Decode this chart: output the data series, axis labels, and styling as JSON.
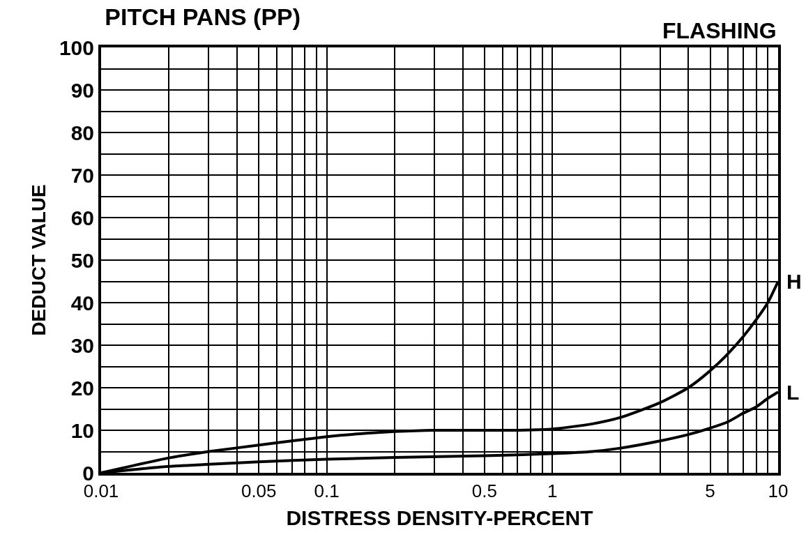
{
  "chart_data": {
    "type": "line",
    "title": "PITCH PANS (PP)",
    "subtitle": "FLASHING",
    "xlabel": "DISTRESS DENSITY-PERCENT",
    "ylabel": "DEDUCT VALUE",
    "log": "x",
    "grid": true,
    "legend": false,
    "marker": "none",
    "line_style": "solid",
    "xlim": [
      0.01,
      10
    ],
    "ylim": [
      0,
      100
    ],
    "xticks": [
      0.01,
      {
        "value": 0.02,
        "label": null
      },
      {
        "value": 0.03,
        "label": null
      },
      {
        "value": 0.04,
        "label": null
      },
      0.05,
      {
        "value": 0.06,
        "label": null
      },
      {
        "value": 0.07,
        "label": null
      },
      {
        "value": 0.08,
        "label": null
      },
      {
        "value": 0.09,
        "label": null
      },
      {
        "value": 0.1,
        "label": "0.1"
      },
      {
        "value": 0.2,
        "label": null
      },
      {
        "value": 0.3,
        "label": null
      },
      {
        "value": 0.4,
        "label": null
      },
      0.5,
      {
        "value": 0.6,
        "label": null
      },
      {
        "value": 0.7,
        "label": null
      },
      {
        "value": 0.8,
        "label": null
      },
      {
        "value": 0.9,
        "label": null
      },
      1,
      {
        "value": 2,
        "label": null
      },
      {
        "value": 3,
        "label": null
      },
      {
        "value": 4,
        "label": null
      },
      5,
      {
        "value": 6,
        "label": null
      },
      {
        "value": 7,
        "label": null
      },
      {
        "value": 8,
        "label": null
      },
      {
        "value": 9,
        "label": null
      },
      10
    ],
    "yticks": [
      0,
      {
        "value": 5,
        "label": null
      },
      10,
      {
        "value": 15,
        "label": null
      },
      20,
      {
        "value": 25,
        "label": null
      },
      30,
      {
        "value": 35,
        "label": null
      },
      40,
      {
        "value": 45,
        "label": null
      },
      50,
      {
        "value": 55,
        "label": null
      },
      60,
      {
        "value": 65,
        "label": null
      },
      70,
      {
        "value": 75,
        "label": null
      },
      80,
      {
        "value": 85,
        "label": null
      },
      90,
      {
        "value": 95,
        "label": null
      },
      100
    ],
    "series": [
      {
        "name": "H",
        "color": "#000000",
        "x": [
          0.01,
          0.02,
          0.03,
          0.05,
          0.07,
          0.1,
          0.15,
          0.2,
          0.3,
          0.5,
          0.7,
          1,
          1.5,
          2,
          3,
          4,
          5,
          6,
          7,
          8,
          9,
          10
        ],
        "values": [
          0,
          3.5,
          5,
          6.5,
          7.5,
          8.5,
          9.3,
          9.7,
          10,
          10,
          10,
          10.3,
          11.5,
          13,
          16.5,
          20,
          24,
          28,
          32,
          36,
          40,
          45
        ]
      },
      {
        "name": "L",
        "color": "#000000",
        "x": [
          0.01,
          0.02,
          0.03,
          0.05,
          0.1,
          0.2,
          0.5,
          1,
          1.5,
          2,
          3,
          4,
          5,
          6,
          7,
          8,
          9,
          10
        ],
        "values": [
          0,
          1.5,
          2,
          2.6,
          3.2,
          3.6,
          4,
          4.5,
          5,
          5.8,
          7.5,
          9,
          10.5,
          12,
          14,
          15.5,
          17.5,
          19
        ]
      }
    ]
  }
}
